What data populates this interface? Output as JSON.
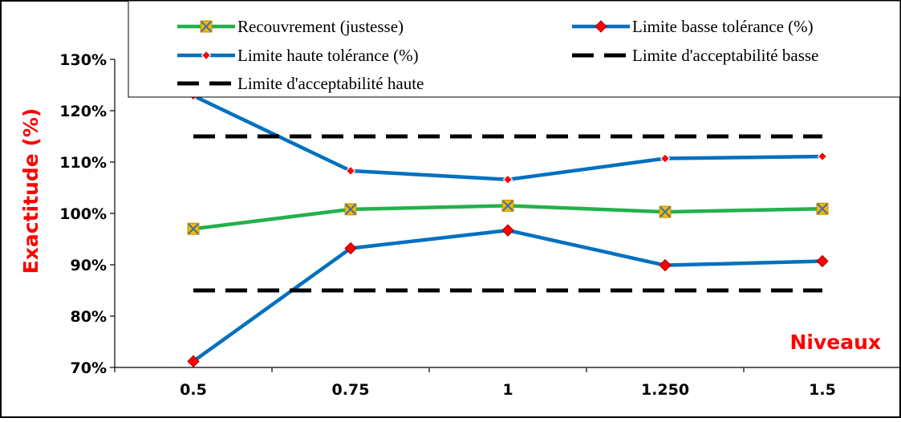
{
  "chart_data": {
    "type": "line",
    "title": "",
    "xlabel": "Niveaux",
    "ylabel": "Exactitude (%)",
    "categories": [
      "0.5",
      "0.75",
      "1",
      "1.250",
      "1.5"
    ],
    "y_ticks": [
      "70%",
      "80%",
      "90%",
      "100%",
      "110%",
      "120%",
      "130%"
    ],
    "ylim": [
      70,
      130
    ],
    "grid": false,
    "legend_position": "top",
    "series": [
      {
        "name": "Recouvrement (justesse)",
        "values": [
          97.0,
          100.8,
          101.5,
          100.3,
          100.9
        ],
        "color": "#22b14c",
        "marker": "x-square",
        "marker_color": "#f5b800"
      },
      {
        "name": "Limite basse tolérance (%)",
        "values": [
          71.2,
          93.2,
          96.7,
          89.9,
          90.7
        ],
        "color": "#0070c0",
        "marker": "diamond",
        "marker_color": "#ff0000"
      },
      {
        "name": "Limite haute tolérance (%)",
        "values": [
          122.9,
          108.3,
          106.6,
          110.7,
          111.1
        ],
        "color": "#0070c0",
        "marker": "diamond-small",
        "marker_color": "#ff0000"
      },
      {
        "name": "Limite d'acceptabilité basse",
        "values": [
          85,
          85,
          85,
          85,
          85
        ],
        "color": "#000000",
        "dashed": true
      },
      {
        "name": "Limite d'acceptabilité haute",
        "values": [
          115,
          115,
          115,
          115,
          115
        ],
        "color": "#000000",
        "dashed": true
      }
    ]
  }
}
